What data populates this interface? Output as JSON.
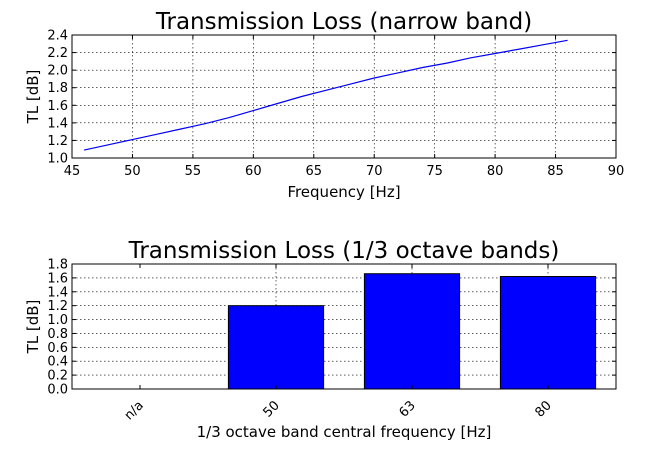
{
  "chart_data": [
    {
      "type": "line",
      "title": "Transmission Loss (narrow band)",
      "xlabel": "Frequency [Hz]",
      "ylabel": "TL [dB]",
      "xlim": [
        45,
        90
      ],
      "ylim": [
        1.0,
        2.4
      ],
      "xticks": [
        "45",
        "50",
        "55",
        "60",
        "65",
        "70",
        "75",
        "80",
        "85",
        "90"
      ],
      "yticks": [
        "1.0",
        "1.2",
        "1.4",
        "1.6",
        "1.8",
        "2.0",
        "2.2",
        "2.4"
      ],
      "grid": true,
      "color": "#0000ff",
      "x": [
        46,
        48,
        50,
        52,
        54,
        56,
        58,
        60,
        62,
        64,
        66,
        68,
        70,
        72,
        74,
        76,
        78,
        80,
        82,
        84,
        86
      ],
      "y": [
        1.09,
        1.15,
        1.21,
        1.27,
        1.33,
        1.39,
        1.46,
        1.54,
        1.62,
        1.7,
        1.77,
        1.84,
        1.91,
        1.97,
        2.03,
        2.08,
        2.14,
        2.19,
        2.24,
        2.29,
        2.34
      ]
    },
    {
      "type": "bar",
      "title": "Transmission Loss (1/3 octave bands)",
      "xlabel": "1/3 octave band central frequency [Hz]",
      "ylabel": "TL [dB]",
      "ylim": [
        0.0,
        1.8
      ],
      "yticks": [
        "0.0",
        "0.2",
        "0.4",
        "0.6",
        "0.8",
        "1.0",
        "1.2",
        "1.4",
        "1.6",
        "1.8"
      ],
      "grid": true,
      "color": "#0000ff",
      "categories": [
        "n/a",
        "50",
        "63",
        "80"
      ],
      "values": [
        0.0,
        1.2,
        1.66,
        1.62
      ]
    }
  ]
}
